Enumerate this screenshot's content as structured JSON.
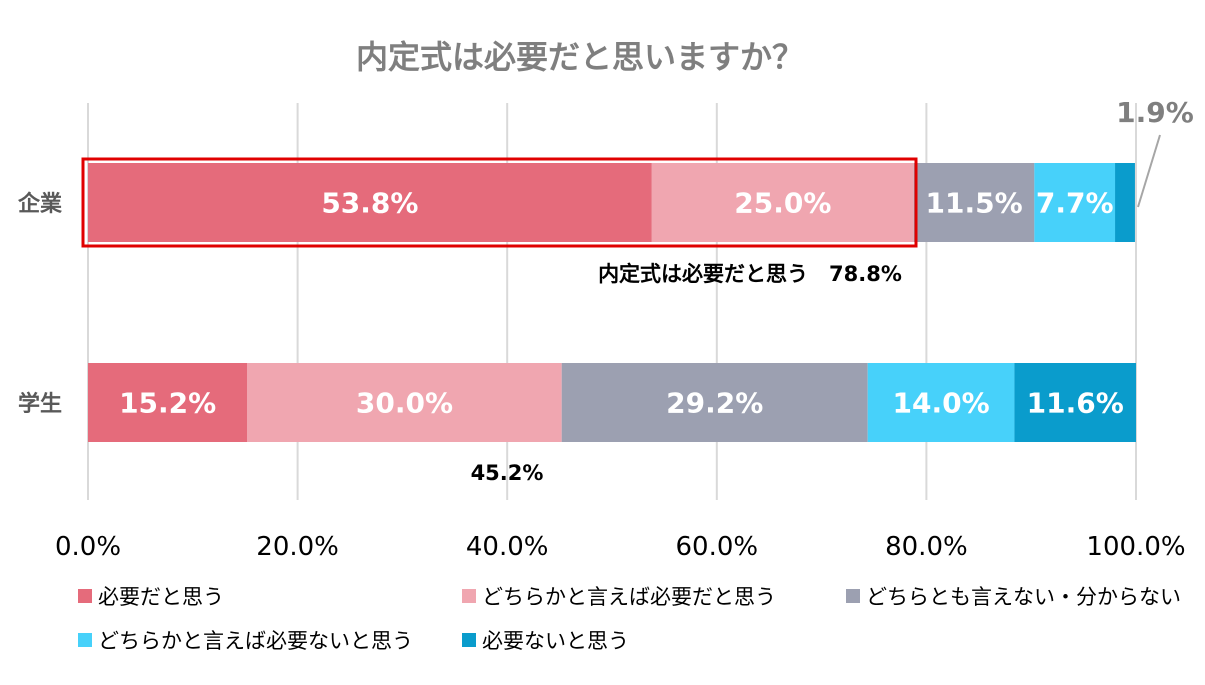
{
  "chart_data": {
    "type": "bar",
    "orientation": "horizontal",
    "stacked": true,
    "title": "内定式は必要だと思いますか？",
    "categories": [
      "企業",
      "学生"
    ],
    "series": [
      {
        "name": "必要だと思う",
        "color": "#e56b7b",
        "values": [
          53.8,
          15.2
        ],
        "labels": [
          "53.8%",
          "15.2%"
        ]
      },
      {
        "name": "どちらかと言えば必要だと思う",
        "color": "#f0a6b0",
        "values": [
          25.0,
          30.0
        ],
        "labels": [
          "25.0%",
          "30.0%"
        ]
      },
      {
        "name": "どちらとも言えない・分からない",
        "color": "#9ca0b1",
        "values": [
          11.5,
          29.2
        ],
        "labels": [
          "11.5%",
          "29.2%"
        ]
      },
      {
        "name": "どちらかと言えば必要ないと思う",
        "color": "#47d1fa",
        "values": [
          7.7,
          14.0
        ],
        "labels": [
          "7.7%",
          "14.0%"
        ]
      },
      {
        "name": "必要ないと思う",
        "color": "#0a9ccc",
        "values": [
          1.9,
          11.6
        ],
        "labels": [
          "1.9%",
          "11.6%"
        ]
      }
    ],
    "xlim": [
      0,
      100
    ],
    "x_ticks": [
      "0.0%",
      "20.0%",
      "40.0%",
      "60.0%",
      "80.0%",
      "100.0%"
    ],
    "grid": true,
    "legend_position": "bottom",
    "annotations": {
      "company_total": "内定式は必要だと思う　78.8%",
      "student_total": "45.2%"
    },
    "highlight_color": "#e00000"
  }
}
